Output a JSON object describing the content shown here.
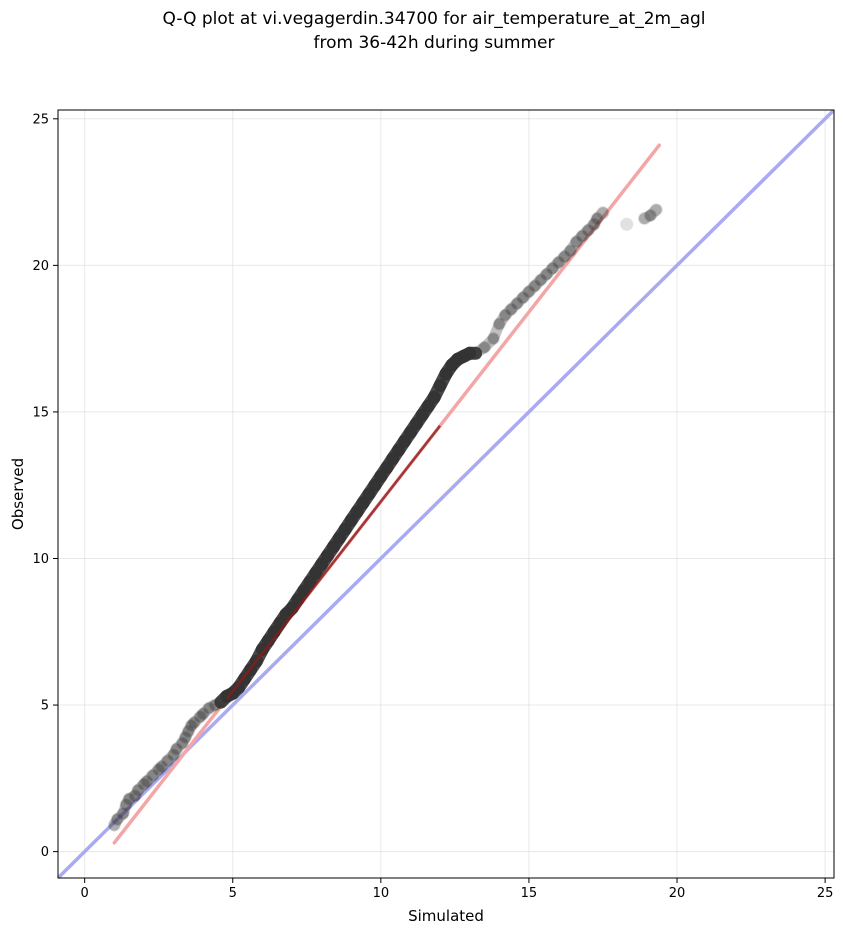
{
  "chart_data": {
    "type": "scatter",
    "title_lines": [
      "Q-Q plot at vi.vegagerdin.34700 for air_temperature_at_2m_agl",
      "from 36-42h during summer"
    ],
    "xlabel": "Simulated",
    "ylabel": "Observed",
    "xlim": [
      -0.9,
      25.3
    ],
    "ylim": [
      -0.9,
      25.3
    ],
    "xticks": [
      "0",
      "5",
      "10",
      "15",
      "20",
      "25"
    ],
    "yticks": [
      "0",
      "5",
      "10",
      "15",
      "20",
      "25"
    ],
    "grid": true,
    "colors": {
      "points": "#333333",
      "identity_line": "#aaaaf2",
      "fit_line": "#f4a6a6",
      "fit_line_dense": "#8b1a1a"
    },
    "identity_line": {
      "from": [
        -0.9,
        -0.9
      ],
      "to": [
        25.3,
        25.3
      ]
    },
    "fit_line": {
      "from": [
        1.0,
        0.3
      ],
      "to": [
        19.4,
        24.1
      ]
    },
    "quantile_points": {
      "x": [
        1.0,
        1.1,
        1.3,
        1.4,
        1.5,
        1.7,
        1.8,
        2.0,
        2.1,
        2.3,
        2.5,
        2.6,
        2.8,
        3.0,
        3.1,
        3.3,
        3.4,
        3.5,
        3.6,
        3.7,
        3.9,
        4.0,
        4.2,
        4.4,
        4.6,
        4.8,
        5.0,
        5.2,
        5.4,
        5.6,
        5.8,
        6.0,
        6.2,
        6.4,
        6.6,
        6.8,
        7.0,
        7.2,
        7.4,
        7.6,
        7.8,
        8.0,
        8.2,
        8.4,
        8.6,
        8.8,
        9.0,
        9.2,
        9.4,
        9.6,
        9.8,
        10.0,
        10.2,
        10.4,
        10.6,
        10.8,
        11.0,
        11.2,
        11.4,
        11.6,
        11.8,
        12.0,
        12.2,
        12.4,
        12.6,
        12.8,
        13.0,
        13.2,
        13.5,
        13.8,
        14.0,
        14.2,
        14.4,
        14.6,
        14.8,
        15.0,
        15.2,
        15.4,
        15.6,
        15.8,
        16.0,
        16.2,
        16.4,
        16.6,
        16.8,
        17.0,
        17.2,
        17.3,
        17.5,
        18.3,
        18.9,
        19.1,
        19.3
      ],
      "y": [
        0.9,
        1.1,
        1.3,
        1.6,
        1.8,
        1.9,
        2.1,
        2.3,
        2.4,
        2.6,
        2.8,
        2.9,
        3.1,
        3.3,
        3.5,
        3.7,
        3.9,
        4.1,
        4.3,
        4.4,
        4.6,
        4.7,
        4.9,
        5.0,
        5.1,
        5.3,
        5.4,
        5.6,
        5.9,
        6.2,
        6.5,
        6.9,
        7.2,
        7.5,
        7.8,
        8.1,
        8.3,
        8.6,
        8.9,
        9.2,
        9.5,
        9.8,
        10.1,
        10.4,
        10.7,
        11.0,
        11.3,
        11.6,
        11.9,
        12.2,
        12.5,
        12.8,
        13.1,
        13.4,
        13.7,
        14.0,
        14.3,
        14.6,
        14.9,
        15.2,
        15.5,
        15.9,
        16.3,
        16.6,
        16.8,
        16.9,
        17.0,
        17.0,
        17.2,
        17.5,
        18.0,
        18.3,
        18.5,
        18.7,
        18.9,
        19.1,
        19.3,
        19.5,
        19.7,
        19.9,
        20.1,
        20.3,
        20.5,
        20.8,
        21.0,
        21.2,
        21.4,
        21.6,
        21.8,
        21.4,
        21.6,
        21.7,
        21.9
      ]
    }
  }
}
